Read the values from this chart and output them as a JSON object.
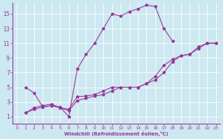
{
  "xlabel": "Windchill (Refroidissement éolien,°C)",
  "bg_color": "#cce8f0",
  "line_color": "#993399",
  "xlim": [
    -0.5,
    23.5
  ],
  "ylim": [
    0,
    16.5
  ],
  "xticks": [
    0,
    1,
    2,
    3,
    4,
    5,
    6,
    7,
    8,
    9,
    10,
    11,
    12,
    13,
    14,
    15,
    16,
    17,
    18,
    19,
    20,
    21,
    22,
    23
  ],
  "yticks": [
    1,
    3,
    5,
    7,
    9,
    11,
    13,
    15
  ],
  "series1_x": [
    1,
    2,
    3,
    4,
    5,
    6,
    7,
    8,
    9,
    10,
    11,
    12,
    13,
    14,
    15,
    16,
    17,
    18
  ],
  "series1_y": [
    5.0,
    4.2,
    2.3,
    2.5,
    2.3,
    1.0,
    7.5,
    9.5,
    11.0,
    13.0,
    15.0,
    14.7,
    15.3,
    15.7,
    16.2,
    16.0,
    13.0,
    11.3
  ],
  "series2_x": [
    1,
    2,
    3,
    4,
    5,
    6,
    7,
    8,
    9,
    10,
    11,
    12,
    13,
    14,
    15,
    16,
    17,
    18,
    19,
    20,
    21,
    22,
    23
  ],
  "series2_y": [
    1.5,
    2.2,
    2.5,
    2.7,
    2.2,
    2.0,
    3.7,
    3.8,
    4.0,
    4.5,
    5.0,
    5.0,
    5.0,
    5.0,
    5.5,
    6.0,
    7.0,
    8.5,
    9.3,
    9.5,
    10.3,
    11.0,
    11.0
  ],
  "series3_x": [
    1,
    2,
    3,
    4,
    5,
    6,
    7,
    8,
    9,
    10,
    11,
    12,
    13,
    14,
    15,
    16,
    17,
    18,
    19,
    20,
    21,
    22,
    23
  ],
  "series3_y": [
    1.5,
    2.0,
    2.3,
    2.5,
    2.2,
    1.8,
    3.2,
    3.5,
    3.8,
    4.0,
    4.5,
    5.0,
    5.0,
    5.0,
    5.5,
    6.5,
    8.0,
    8.8,
    9.3,
    9.5,
    10.5,
    11.0,
    11.0
  ]
}
